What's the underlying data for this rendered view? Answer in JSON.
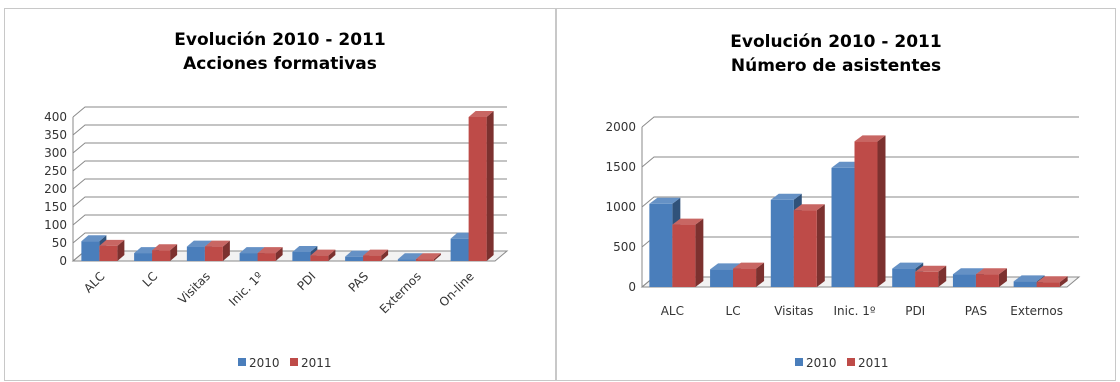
{
  "chart_data": [
    {
      "type": "bar",
      "title_lines": [
        "Evolución 2010 - 2011",
        "Acciones formativas"
      ],
      "categories": [
        "ALC",
        "LC",
        "Visitas",
        "Inic. 1º",
        "PDI",
        "PAS",
        "Externos",
        "On-line"
      ],
      "series": [
        {
          "name": "2010",
          "values": [
            55,
            22,
            40,
            22,
            25,
            12,
            5,
            62
          ],
          "color": "#4a7ebb"
        },
        {
          "name": "2011",
          "values": [
            42,
            30,
            40,
            22,
            15,
            15,
            5,
            400
          ],
          "color": "#be4b48"
        }
      ],
      "ylim": [
        0,
        400
      ],
      "yticks": [
        0,
        50,
        100,
        150,
        200,
        250,
        300,
        350,
        400
      ],
      "grid": true,
      "legend": "bottom",
      "rotated_labels": true
    },
    {
      "type": "bar",
      "title_lines": [
        "Evolución 2010 - 2011",
        "Número de asistentes"
      ],
      "categories": [
        "ALC",
        "LC",
        "Visitas",
        "Inic. 1º",
        "PDI",
        "PAS",
        "Externos"
      ],
      "series": [
        {
          "name": "2010",
          "values": [
            1040,
            220,
            1090,
            1490,
            230,
            160,
            70
          ],
          "color": "#4a7ebb"
        },
        {
          "name": "2011",
          "values": [
            780,
            230,
            960,
            1820,
            190,
            160,
            60
          ],
          "color": "#be4b48"
        }
      ],
      "ylim": [
        0,
        2000
      ],
      "yticks": [
        0,
        500,
        1000,
        1500,
        2000
      ],
      "grid": true,
      "legend": "bottom",
      "rotated_labels": false
    }
  ]
}
